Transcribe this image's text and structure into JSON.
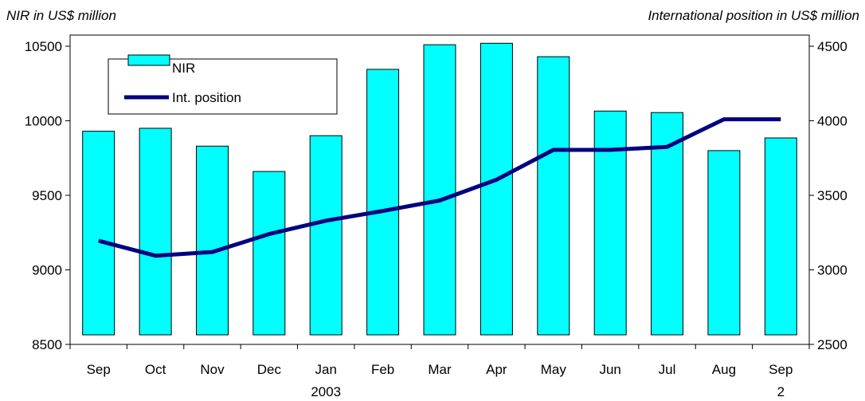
{
  "chart_data": {
    "type": "bar+line",
    "title_left": "NIR in US$ million",
    "title_right": "International position in US$ million",
    "categories": [
      "Sep",
      "Oct",
      "Nov",
      "Dec",
      "Jan",
      "Feb",
      "Mar",
      "Apr",
      "May",
      "Jun",
      "Jul",
      "Aug",
      "Sep"
    ],
    "year_labels": [
      "2003",
      "2"
    ],
    "series": [
      {
        "name": "NIR",
        "type": "bar",
        "axis": "left",
        "color": "#00FFFF",
        "values": [
          9930,
          9950,
          9830,
          9660,
          9900,
          10345,
          10510,
          10520,
          10430,
          10065,
          10055,
          9800,
          9885
        ]
      },
      {
        "name": "Int. position",
        "type": "line",
        "axis": "right",
        "color": "#000080",
        "values": [
          3195,
          3095,
          3120,
          3240,
          3330,
          3395,
          3465,
          3605,
          3805,
          3805,
          3825,
          4010,
          4010
        ]
      }
    ],
    "y_left": {
      "min": 8500,
      "max": 10500,
      "ticks": [
        8500,
        9000,
        9500,
        10000,
        10500
      ]
    },
    "y_right": {
      "min": 2500,
      "max": 4500,
      "ticks": [
        2500,
        3000,
        3500,
        4000,
        4500
      ]
    },
    "legend_position": "top-left",
    "grid": false
  }
}
